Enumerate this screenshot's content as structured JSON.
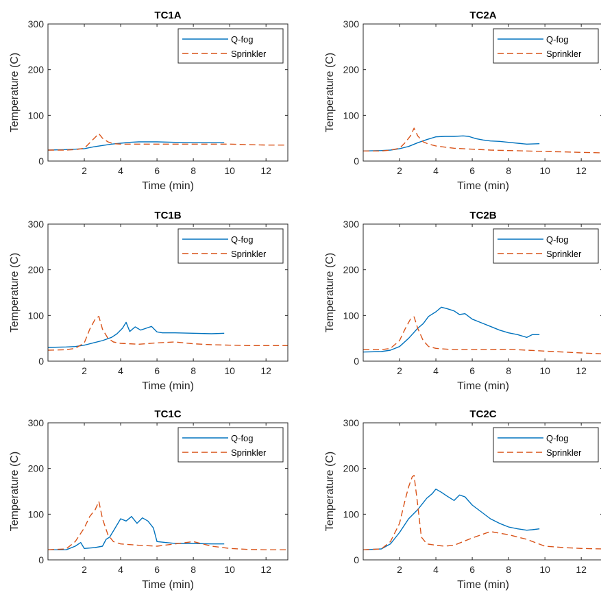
{
  "chart_data": [
    {
      "type": "line",
      "title": "TC1A",
      "xlabel": "Time (min)",
      "ylabel": "Temperature (C)",
      "xlim": [
        0,
        13.2
      ],
      "ylim": [
        0,
        300
      ],
      "xticks": [
        2,
        4,
        6,
        8,
        10,
        12
      ],
      "yticks": [
        0,
        100,
        200,
        300
      ],
      "legend": "top-right",
      "series": [
        {
          "name": "Q-fog",
          "style": "solid",
          "color": "#0072BD",
          "x": [
            0,
            1,
            1.5,
            2,
            2.5,
            3,
            3.5,
            4,
            4.5,
            5,
            5.5,
            6,
            7,
            8,
            9,
            9.7
          ],
          "y": [
            24,
            25,
            26,
            27,
            31,
            34,
            37,
            39,
            41,
            42,
            42,
            42,
            41,
            40,
            40,
            40
          ]
        },
        {
          "name": "Sprinkler",
          "style": "dashed",
          "color": "#D95319",
          "x": [
            0,
            1,
            1.5,
            2,
            2.3,
            2.6,
            2.8,
            3.0,
            3.3,
            3.6,
            4,
            5,
            6,
            8,
            10,
            12,
            13.2
          ],
          "y": [
            24,
            24,
            25,
            28,
            40,
            52,
            60,
            50,
            42,
            38,
            37,
            37,
            37,
            37,
            37,
            35,
            35
          ]
        }
      ]
    },
    {
      "type": "line",
      "title": "TC2A",
      "xlabel": "Time (min)",
      "ylabel": "Temperature (C)",
      "xlim": [
        0,
        13.2
      ],
      "ylim": [
        0,
        300
      ],
      "xticks": [
        2,
        4,
        6,
        8,
        10,
        12
      ],
      "yticks": [
        0,
        100,
        200,
        300
      ],
      "legend": "top-right",
      "series": [
        {
          "name": "Q-fog",
          "style": "solid",
          "color": "#0072BD",
          "x": [
            0,
            1,
            1.5,
            2,
            2.5,
            3,
            3.5,
            4,
            4.5,
            5,
            5.5,
            5.8,
            6.2,
            6.6,
            7,
            7.5,
            8,
            8.5,
            9,
            9.7
          ],
          "y": [
            22,
            23,
            24,
            27,
            32,
            40,
            47,
            53,
            54,
            54,
            55,
            54,
            49,
            46,
            44,
            43,
            41,
            39,
            37,
            38
          ]
        },
        {
          "name": "Sprinkler",
          "style": "dashed",
          "color": "#D95319",
          "x": [
            0,
            1,
            1.5,
            2,
            2.3,
            2.6,
            2.8,
            3.0,
            3.3,
            3.6,
            4,
            5,
            6,
            7,
            8,
            10,
            12,
            13.2
          ],
          "y": [
            22,
            22,
            24,
            28,
            40,
            55,
            72,
            55,
            42,
            37,
            33,
            28,
            26,
            24,
            23,
            21,
            19,
            18
          ]
        }
      ]
    },
    {
      "type": "line",
      "title": "TC1B",
      "xlabel": "Time (min)",
      "ylabel": "Temperature (C)",
      "xlim": [
        0,
        13.2
      ],
      "ylim": [
        0,
        300
      ],
      "xticks": [
        2,
        4,
        6,
        8,
        10,
        12
      ],
      "yticks": [
        0,
        100,
        200,
        300
      ],
      "legend": "top-right",
      "series": [
        {
          "name": "Q-fog",
          "style": "solid",
          "color": "#0072BD",
          "x": [
            0,
            1,
            1.5,
            2,
            2.5,
            3,
            3.5,
            3.8,
            4.1,
            4.3,
            4.5,
            4.8,
            5.1,
            5.4,
            5.7,
            6.0,
            6.3,
            7,
            8,
            9,
            9.7
          ],
          "y": [
            30,
            31,
            32,
            35,
            40,
            45,
            52,
            60,
            72,
            85,
            65,
            75,
            68,
            72,
            76,
            64,
            62,
            62,
            61,
            60,
            61
          ]
        },
        {
          "name": "Sprinkler",
          "style": "dashed",
          "color": "#D95319",
          "x": [
            0,
            1,
            1.5,
            2,
            2.3,
            2.6,
            2.8,
            3.0,
            3.3,
            3.6,
            4,
            5,
            6,
            7,
            8,
            9,
            10,
            11,
            12,
            13.2
          ],
          "y": [
            24,
            25,
            28,
            40,
            70,
            92,
            98,
            70,
            50,
            42,
            39,
            37,
            40,
            42,
            38,
            36,
            35,
            34,
            34,
            34
          ]
        }
      ]
    },
    {
      "type": "line",
      "title": "TC2B",
      "xlabel": "Time (min)",
      "ylabel": "Temperature (C)",
      "xlim": [
        0,
        13.2
      ],
      "ylim": [
        0,
        300
      ],
      "xticks": [
        2,
        4,
        6,
        8,
        10,
        12
      ],
      "yticks": [
        0,
        100,
        200,
        300
      ],
      "legend": "top-right",
      "series": [
        {
          "name": "Q-fog",
          "style": "solid",
          "color": "#0072BD",
          "x": [
            0,
            1,
            1.5,
            2,
            2.5,
            3,
            3.3,
            3.6,
            4,
            4.3,
            4.6,
            5,
            5.3,
            5.6,
            6,
            6.5,
            7,
            7.5,
            8,
            8.5,
            9,
            9.3,
            9.7
          ],
          "y": [
            20,
            21,
            24,
            32,
            50,
            72,
            82,
            98,
            108,
            118,
            115,
            110,
            102,
            104,
            92,
            84,
            76,
            68,
            62,
            58,
            52,
            58,
            58
          ]
        },
        {
          "name": "Sprinkler",
          "style": "dashed",
          "color": "#D95319",
          "x": [
            0,
            1,
            1.5,
            2,
            2.3,
            2.6,
            2.8,
            3.0,
            3.3,
            3.6,
            4,
            5,
            6,
            7,
            8,
            9,
            10,
            11,
            12,
            13.2
          ],
          "y": [
            25,
            25,
            28,
            45,
            70,
            92,
            97,
            72,
            45,
            32,
            28,
            25,
            25,
            25,
            26,
            24,
            22,
            20,
            18,
            16
          ]
        }
      ]
    },
    {
      "type": "line",
      "title": "TC1C",
      "xlabel": "Time (min)",
      "ylabel": "Temperature (C)",
      "xlim": [
        0,
        13.2
      ],
      "ylim": [
        0,
        300
      ],
      "xticks": [
        2,
        4,
        6,
        8,
        10,
        12
      ],
      "yticks": [
        0,
        100,
        200,
        300
      ],
      "legend": "top-right",
      "series": [
        {
          "name": "Q-fog",
          "style": "solid",
          "color": "#0072BD",
          "x": [
            0,
            1,
            1.5,
            1.8,
            2.0,
            2.3,
            2.6,
            3.0,
            3.2,
            3.4,
            3.7,
            4.0,
            4.3,
            4.6,
            4.9,
            5.2,
            5.5,
            5.8,
            6.0,
            6.5,
            7,
            8,
            9,
            9.7
          ],
          "y": [
            22,
            22,
            30,
            38,
            25,
            26,
            27,
            30,
            45,
            50,
            70,
            90,
            85,
            95,
            80,
            92,
            85,
            70,
            40,
            38,
            36,
            36,
            35,
            35
          ]
        },
        {
          "name": "Sprinkler",
          "style": "dashed",
          "color": "#D95319",
          "x": [
            0,
            1,
            1.5,
            2,
            2.3,
            2.6,
            2.8,
            3.0,
            3.3,
            3.6,
            4,
            5,
            6,
            7,
            8,
            9,
            10,
            11,
            12,
            13.2
          ],
          "y": [
            22,
            24,
            40,
            70,
            95,
            110,
            128,
            90,
            55,
            40,
            35,
            32,
            30,
            35,
            40,
            30,
            25,
            23,
            22,
            22
          ]
        }
      ]
    },
    {
      "type": "line",
      "title": "TC2C",
      "xlabel": "Time (min)",
      "ylabel": "Temperature (C)",
      "xlim": [
        0,
        13.2
      ],
      "ylim": [
        0,
        300
      ],
      "xticks": [
        2,
        4,
        6,
        8,
        10,
        12
      ],
      "yticks": [
        0,
        100,
        200,
        300
      ],
      "legend": "top-right",
      "series": [
        {
          "name": "Q-fog",
          "style": "solid",
          "color": "#0072BD",
          "x": [
            0,
            1,
            1.5,
            2,
            2.5,
            3,
            3.5,
            3.8,
            4.0,
            4.3,
            4.6,
            5.0,
            5.3,
            5.6,
            6.0,
            6.5,
            7,
            7.5,
            8,
            8.5,
            9,
            9.3,
            9.7
          ],
          "y": [
            22,
            24,
            35,
            60,
            90,
            110,
            135,
            145,
            155,
            148,
            140,
            130,
            142,
            138,
            120,
            105,
            90,
            80,
            72,
            68,
            65,
            66,
            68
          ]
        },
        {
          "name": "Sprinkler",
          "style": "dashed",
          "color": "#D95319",
          "x": [
            0,
            1,
            1.5,
            2,
            2.3,
            2.5,
            2.7,
            2.8,
            3.0,
            3.2,
            3.5,
            4,
            4.5,
            5,
            6,
            6.5,
            7,
            8,
            9,
            10,
            11,
            12,
            13.2
          ],
          "y": [
            22,
            24,
            40,
            80,
            130,
            160,
            182,
            185,
            120,
            50,
            35,
            32,
            30,
            32,
            48,
            55,
            62,
            55,
            45,
            30,
            27,
            25,
            24
          ]
        }
      ]
    }
  ]
}
